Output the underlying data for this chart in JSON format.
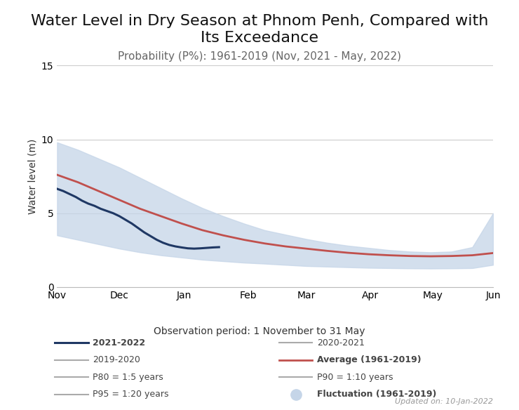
{
  "title": "Water Level in Dry Season at Phnom Penh, Compared with\nIts Exceedance",
  "subtitle": "Probability (P%): 1961-2019 (Nov, 2021 - May, 2022)",
  "xlabel": "Observation period: 1 November to 31 May",
  "ylabel": "Water level (m)",
  "ylim": [
    0,
    15
  ],
  "yticks": [
    0,
    5,
    10,
    15
  ],
  "bg_color": "#ffffff",
  "plot_bg_color": "#ffffff",
  "title_fontsize": 16,
  "subtitle_fontsize": 11,
  "label_fontsize": 10,
  "grid_color": "#cccccc",
  "updated_text": "Updated on: 10-Jan-2022",
  "avg_color": "#c0504d",
  "navy_color": "#1f3864",
  "shade_color": "#c5d5e8",
  "grey_line_color": "#aaaaaa",
  "months": [
    "Nov",
    "Dec",
    "Jan",
    "Feb",
    "Mar",
    "Apr",
    "May",
    "Jun"
  ],
  "month_positions": [
    0,
    30,
    61,
    92,
    120,
    151,
    181,
    210
  ],
  "avg_x": [
    0,
    10,
    20,
    30,
    40,
    50,
    60,
    70,
    80,
    90,
    100,
    110,
    120,
    130,
    140,
    150,
    160,
    170,
    180,
    190,
    200,
    210
  ],
  "avg_y": [
    7.6,
    7.1,
    6.5,
    5.9,
    5.3,
    4.8,
    4.3,
    3.85,
    3.5,
    3.2,
    2.95,
    2.75,
    2.6,
    2.45,
    2.32,
    2.22,
    2.15,
    2.1,
    2.08,
    2.1,
    2.15,
    2.3
  ],
  "shade_upper": [
    9.8,
    9.3,
    8.7,
    8.1,
    7.4,
    6.7,
    6.0,
    5.35,
    4.8,
    4.3,
    3.85,
    3.55,
    3.25,
    3.0,
    2.8,
    2.65,
    2.5,
    2.4,
    2.35,
    2.4,
    2.7,
    5.0
  ],
  "shade_lower": [
    3.5,
    3.2,
    2.9,
    2.6,
    2.35,
    2.15,
    2.0,
    1.85,
    1.75,
    1.65,
    1.58,
    1.5,
    1.42,
    1.38,
    1.34,
    1.3,
    1.28,
    1.26,
    1.25,
    1.26,
    1.28,
    1.5
  ],
  "line2021_x": [
    0,
    3,
    6,
    9,
    12,
    15,
    18,
    21,
    24,
    27,
    30,
    33,
    36,
    39,
    42,
    45,
    48,
    51,
    54,
    57,
    60,
    63,
    66,
    69,
    72,
    75,
    78
  ],
  "line2021_y": [
    6.65,
    6.5,
    6.3,
    6.1,
    5.85,
    5.65,
    5.5,
    5.3,
    5.15,
    5.0,
    4.8,
    4.55,
    4.3,
    4.0,
    3.7,
    3.45,
    3.2,
    3.0,
    2.85,
    2.75,
    2.68,
    2.62,
    2.6,
    2.62,
    2.65,
    2.68,
    2.7
  ],
  "legend_left": [
    {
      "color": "navy",
      "label": "2021-2022",
      "bold": true,
      "lw": 2.2
    },
    {
      "color": "grey",
      "label": "2019-2020",
      "bold": false,
      "lw": 1.5
    },
    {
      "color": "grey",
      "label": "P80 = 1:5 years",
      "bold": false,
      "lw": 1.5
    },
    {
      "color": "grey",
      "label": "P95 = 1:20 years",
      "bold": false,
      "lw": 1.5
    }
  ],
  "legend_right": [
    {
      "color": "grey",
      "label": "2020-2021",
      "bold": false,
      "lw": 1.5
    },
    {
      "color": "red",
      "label": "Average (1961-2019)",
      "bold": true,
      "lw": 2.0
    },
    {
      "color": "grey",
      "label": "P90 = 1:10 years",
      "bold": false,
      "lw": 1.5
    },
    {
      "color": "shade",
      "label": "Fluctuation (1961-2019)",
      "bold": true,
      "lw": 0
    }
  ]
}
